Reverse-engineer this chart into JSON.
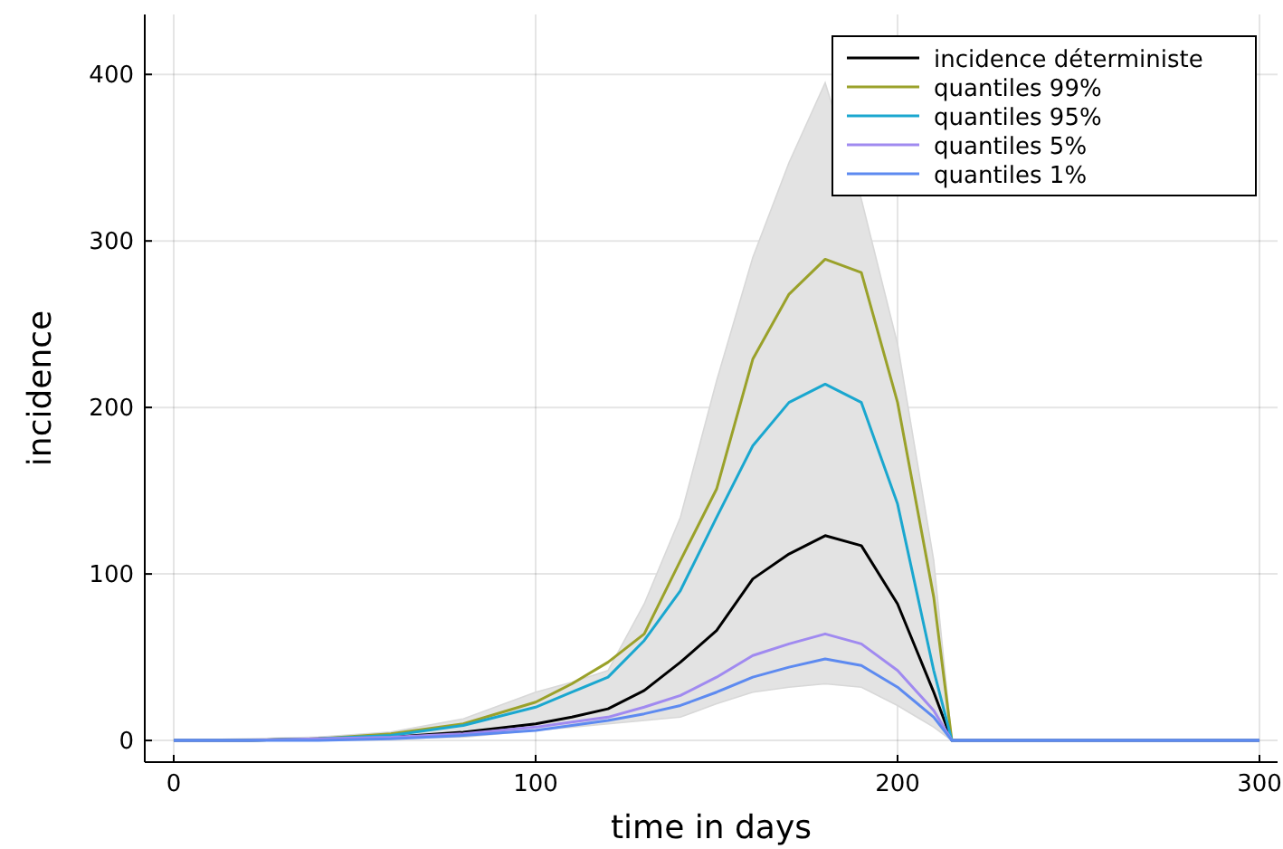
{
  "chart_data": {
    "type": "line",
    "xlabel": "time in days",
    "ylabel": "incidence",
    "x": [
      0,
      20,
      40,
      60,
      80,
      100,
      110,
      120,
      130,
      140,
      150,
      160,
      170,
      180,
      190,
      200,
      210,
      215,
      250,
      300
    ],
    "xlim": [
      -8,
      305
    ],
    "xticks": [
      0,
      100,
      200,
      300
    ],
    "ylim": [
      -13,
      436
    ],
    "yticks": [
      0,
      100,
      200,
      300,
      400
    ],
    "grid": true,
    "legend": "top right",
    "line_style": "solid",
    "marker": "none",
    "series": [
      {
        "name": "incidence déterministe",
        "color": "#000000",
        "values": [
          0,
          0,
          1,
          2,
          5,
          10,
          14,
          19,
          30,
          47,
          66,
          97,
          112,
          123,
          117,
          82,
          29,
          0,
          0,
          0
        ],
        "lower": [
          0,
          0,
          0,
          1,
          2,
          6,
          8,
          10,
          12,
          14,
          22,
          29,
          32,
          34,
          32,
          21,
          8,
          0,
          0,
          0
        ],
        "upper": [
          0,
          1,
          2,
          5,
          13,
          29,
          35,
          42,
          82,
          134,
          216,
          290,
          347,
          395,
          325,
          238,
          108,
          0,
          0,
          0
        ]
      },
      {
        "name": "quantiles 99%",
        "color": "#9aa12a",
        "values": [
          0,
          0,
          1,
          4,
          10,
          23,
          34,
          47,
          64,
          108,
          151,
          229,
          268,
          289,
          281,
          203,
          86,
          0,
          0,
          0
        ]
      },
      {
        "name": "quantiles 95%",
        "color": "#1aa7cf",
        "values": [
          0,
          0,
          1,
          3,
          9,
          20,
          29,
          38,
          60,
          90,
          134,
          177,
          203,
          214,
          203,
          142,
          42,
          0,
          0,
          0
        ]
      },
      {
        "name": "quantiles 5%",
        "color": "#a08af0",
        "values": [
          0,
          0,
          1,
          2,
          4,
          8,
          11,
          14,
          20,
          27,
          38,
          51,
          58,
          64,
          58,
          42,
          18,
          0,
          0,
          0
        ]
      },
      {
        "name": "quantiles 1%",
        "color": "#5d8af0",
        "values": [
          0,
          0,
          0,
          1,
          3,
          6,
          9,
          12,
          16,
          21,
          29,
          38,
          44,
          49,
          45,
          32,
          14,
          0,
          0,
          0
        ]
      }
    ]
  }
}
